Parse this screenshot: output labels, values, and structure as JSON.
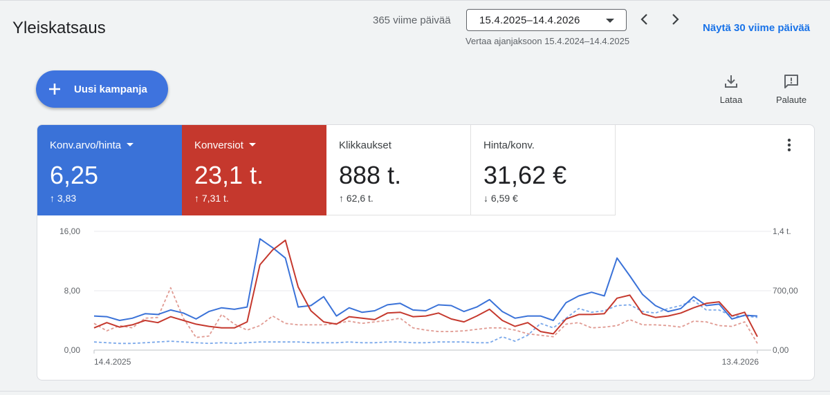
{
  "header": {
    "title": "Yleiskatsaus",
    "range_label": "365 viime päivää",
    "range_value": "15.4.2025–14.4.2026",
    "compare_text": "Vertaa ajanjaksoon 15.4.2024–14.4.2025",
    "show_30_link": "Näytä 30 viime päivää"
  },
  "actions": {
    "new_campaign_label": "Uusi kampanja",
    "download_label": "Lataa",
    "feedback_label": "Palaute"
  },
  "metrics": [
    {
      "name": "Konv.arvo/hinta",
      "value": "6,25",
      "delta": "3,83",
      "direction": "up",
      "color": "#3a72d8",
      "selected": true
    },
    {
      "name": "Konversiot",
      "value": "23,1 t.",
      "delta": "7,31 t.",
      "direction": "up",
      "color": "#c5382d",
      "selected": true
    },
    {
      "name": "Klikkaukset",
      "value": "888 t.",
      "delta": "62,6 t.",
      "direction": "up",
      "selected": false
    },
    {
      "name": "Hinta/konv.",
      "value": "31,62 €",
      "delta": "6,59 €",
      "direction": "down",
      "selected": false
    }
  ],
  "chart_data": {
    "type": "line",
    "y_left": {
      "ticks": [
        "16,00",
        "8,00",
        "0,00"
      ],
      "range": [
        0,
        16
      ]
    },
    "y_right": {
      "ticks": [
        "1,4 t.",
        "700,00",
        "0,00"
      ],
      "range": [
        0,
        1400
      ]
    },
    "x_tick_labels": [
      "14.4.2025",
      "13.4.2026"
    ],
    "grid": true,
    "series": [
      {
        "axis": "left",
        "color": "#3a72d8",
        "style": "solid",
        "values": [
          4.6,
          4.5,
          4.0,
          4.3,
          4.9,
          4.8,
          5.4,
          5.0,
          4.2,
          5.2,
          5.7,
          5.5,
          5.8,
          15.0,
          13.8,
          12.4,
          5.8,
          6.0,
          7.2,
          4.6,
          5.7,
          5.1,
          5.3,
          6.1,
          6.3,
          5.4,
          5.3,
          6.1,
          6.0,
          5.2,
          5.8,
          6.8,
          5.2,
          4.3,
          4.6,
          4.6,
          4.0,
          6.4,
          7.3,
          7.8,
          7.3,
          12.4,
          10.0,
          7.5,
          6.0,
          5.2,
          5.6,
          7.2,
          6.0,
          6.2,
          4.2,
          4.7,
          4.6
        ]
      },
      {
        "axis": "left",
        "color": "#c5382d",
        "style": "solid",
        "values": [
          3.0,
          3.7,
          3.1,
          3.4,
          4.0,
          3.7,
          4.5,
          4.0,
          3.5,
          3.2,
          3.0,
          3.0,
          3.8,
          11.5,
          13.5,
          14.8,
          8.5,
          5.3,
          3.8,
          3.5,
          4.5,
          4.3,
          4.1,
          5.0,
          5.1,
          4.5,
          4.6,
          5.0,
          4.2,
          3.8,
          4.6,
          5.5,
          4.0,
          3.2,
          3.7,
          2.5,
          2.2,
          4.2,
          4.8,
          4.8,
          4.9,
          7.0,
          7.4,
          4.9,
          4.4,
          4.6,
          5.0,
          5.7,
          6.3,
          6.5,
          4.6,
          5.1,
          1.8
        ]
      },
      {
        "axis": "left",
        "color": "#e09a92",
        "style": "dashed",
        "values": [
          3.6,
          2.6,
          3.3,
          3.0,
          4.3,
          4.4,
          8.4,
          4.3,
          1.7,
          1.9,
          4.8,
          3.5,
          2.7,
          3.3,
          4.6,
          3.6,
          3.4,
          3.4,
          3.4,
          3.6,
          3.9,
          3.6,
          3.8,
          4.0,
          4.3,
          3.0,
          2.7,
          2.5,
          2.5,
          2.6,
          2.8,
          3.0,
          3.0,
          2.7,
          2.2,
          2.0,
          1.8,
          3.5,
          3.7,
          3.0,
          3.1,
          3.3,
          4.1,
          3.4,
          3.4,
          3.3,
          3.1,
          3.9,
          3.8,
          3.3,
          3.2,
          3.8,
          0.9
        ]
      },
      {
        "axis": "left",
        "color": "#7aa8ea",
        "style": "dashed",
        "values": [
          1.1,
          1.0,
          0.9,
          0.9,
          1.0,
          1.1,
          1.2,
          1.1,
          1.0,
          0.9,
          1.0,
          0.9,
          1.0,
          1.1,
          1.1,
          1.1,
          1.1,
          1.0,
          1.0,
          1.0,
          1.1,
          1.0,
          1.0,
          1.1,
          1.1,
          1.0,
          1.0,
          1.1,
          1.1,
          1.1,
          1.0,
          1.0,
          1.8,
          1.2,
          2.0,
          3.6,
          3.0,
          4.3,
          5.6,
          5.1,
          5.3,
          6.0,
          6.1,
          5.2,
          5.0,
          5.6,
          6.0,
          6.7,
          5.4,
          5.4,
          4.6,
          4.6,
          4.4
        ]
      }
    ]
  },
  "colors": {
    "accent_blue": "#3e73de",
    "link_blue": "#1a73e8",
    "red": "#c5382d"
  },
  "icons": [
    "plus-icon",
    "download-icon",
    "feedback-icon",
    "chevron-left-icon",
    "chevron-right-icon",
    "more-vert-icon",
    "arrow-up-icon",
    "arrow-down-icon"
  ]
}
